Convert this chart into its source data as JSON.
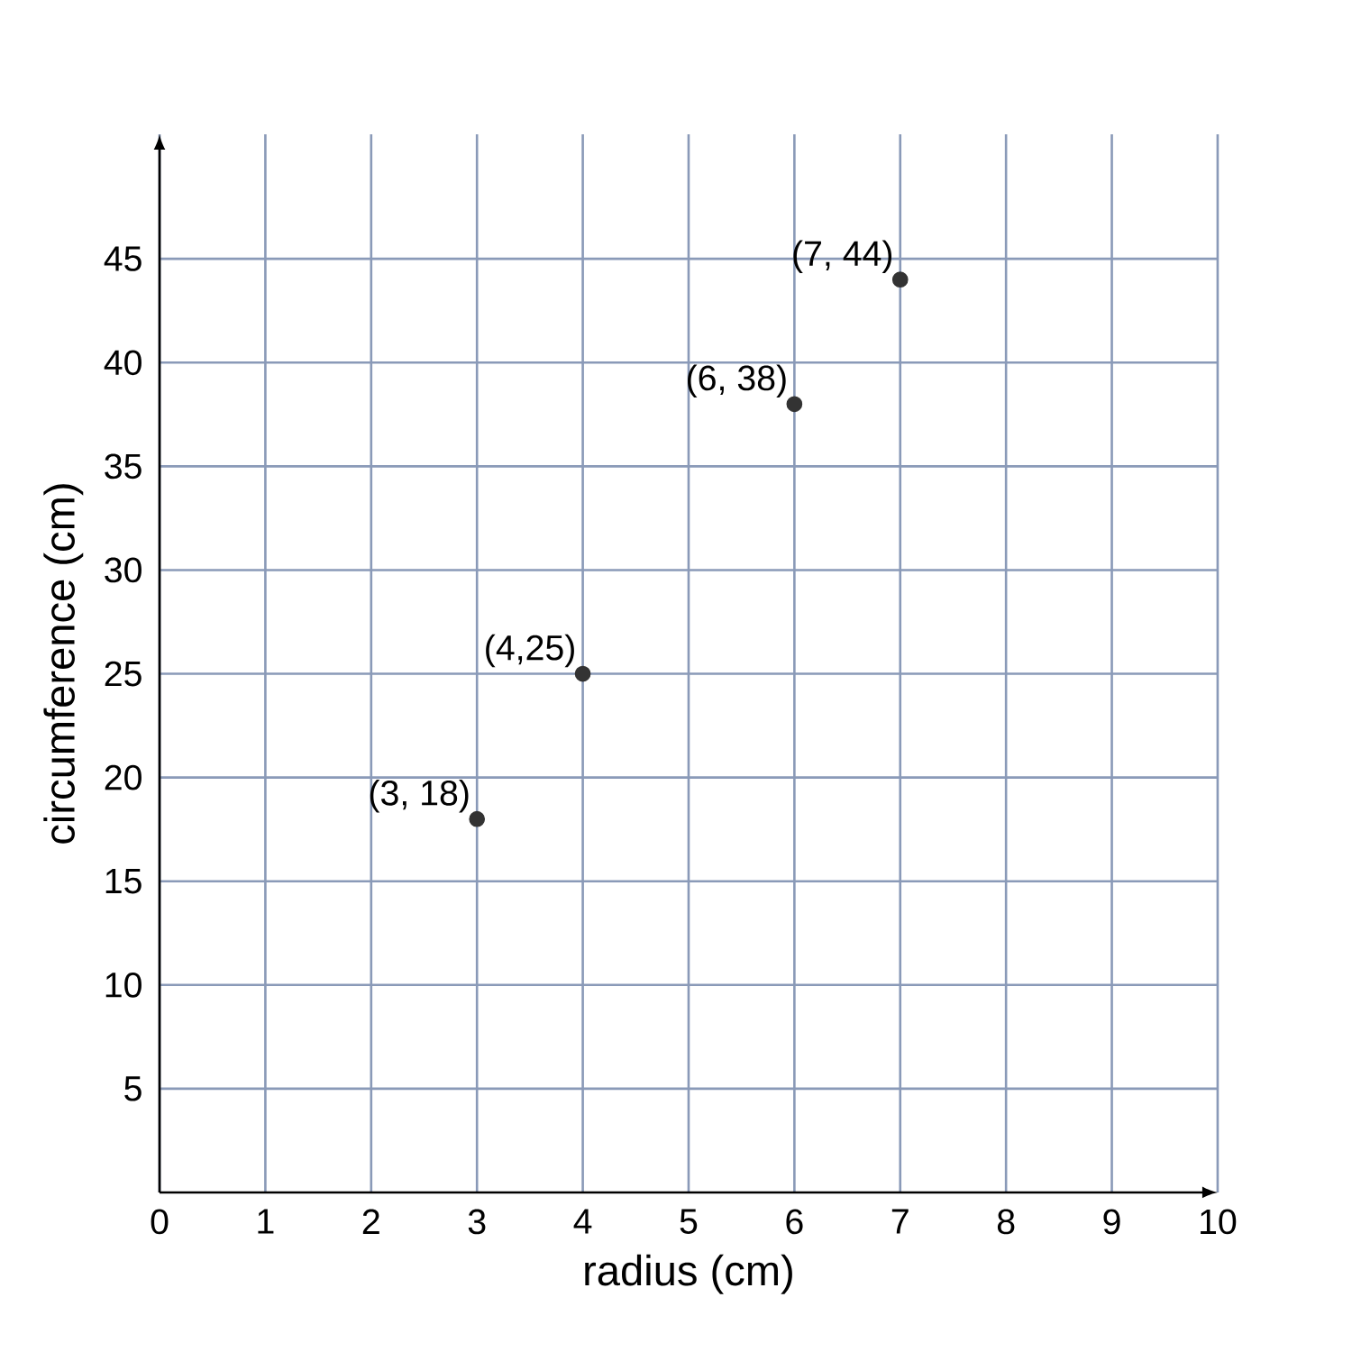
{
  "chart_data": {
    "type": "scatter",
    "xlabel": "radius (cm)",
    "ylabel": "circumference (cm)",
    "x": [
      3,
      4,
      6,
      7
    ],
    "values": [
      18,
      25,
      38,
      44
    ],
    "color": "#333333",
    "grid": true,
    "xlim": [
      0,
      10
    ],
    "ylim": [
      0,
      51
    ],
    "xticks": [
      {
        "value": 0,
        "label": "0"
      },
      1,
      2,
      3,
      4,
      5,
      6,
      7,
      8,
      9,
      10
    ],
    "yticks": [
      5,
      10,
      15,
      20,
      25,
      30,
      35,
      40,
      45
    ],
    "annotations": [
      {
        "text": "(3, 18)",
        "x": 3,
        "y": 18
      },
      {
        "text": "(4,25)",
        "x": 4,
        "y": 25
      },
      {
        "text": "(6, 38)",
        "x": 6,
        "y": 38
      },
      {
        "text": "(7, 44)",
        "x": 7,
        "y": 44
      }
    ]
  }
}
